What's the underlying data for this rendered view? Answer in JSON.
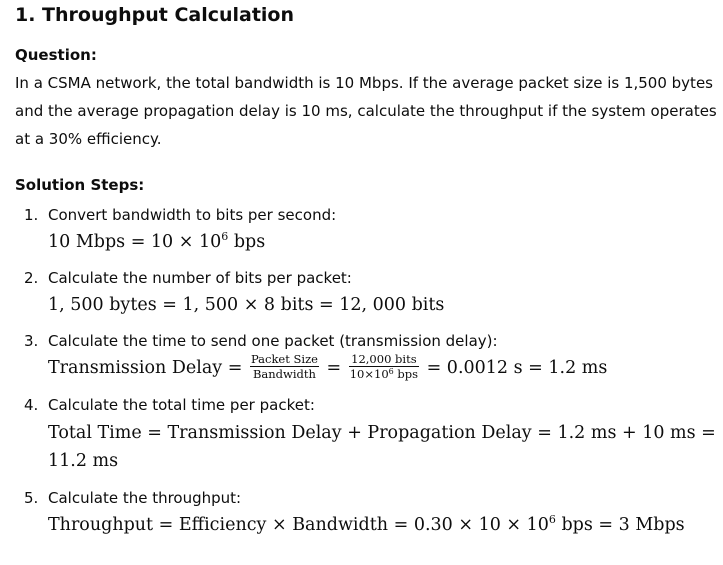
{
  "heading": "1. Throughput Calculation",
  "question": {
    "label": "Question:",
    "text": "In a CSMA network, the total bandwidth is 10 Mbps. If the average packet size is 1,500 bytes and the average propagation delay is 10 ms, calculate the throughput if the system operates at a 30% efficiency."
  },
  "solution": {
    "label": "Solution Steps:",
    "steps": [
      {
        "number": "1.",
        "title": "Convert bandwidth to bits per second:",
        "lhs": "10 Mbps = 10 × 10",
        "exp": "6",
        "rhs": " bps"
      },
      {
        "number": "2.",
        "title": "Calculate the number of bits per packet:",
        "formula": "1, 500 bytes = 1, 500 × 8 bits = 12, 000 bits"
      },
      {
        "number": "3.",
        "title": "Calculate the time to send one packet (transmission delay):",
        "lhs": "Transmission Delay = ",
        "frac1_num": "Packet Size",
        "frac1_den": "Bandwidth",
        "eq": " = ",
        "frac2_num": "12,000 bits",
        "frac2_den_pre": "10×10",
        "frac2_den_exp": "6",
        "frac2_den_post": " bps",
        "result": " = 0.0012 s = 1.2 ms"
      },
      {
        "number": "4.",
        "title": "Calculate the total time per packet:",
        "formula": "Total Time = Transmission Delay + Propagation Delay = 1.2 ms + 10 ms = 11.2 ms"
      },
      {
        "number": "5.",
        "title": "Calculate the throughput:",
        "lhs": "Throughput = Efficiency × Bandwidth = 0.30 × 10 × 10",
        "exp": "6",
        "rhs": " bps = 3 Mbps"
      }
    ]
  }
}
